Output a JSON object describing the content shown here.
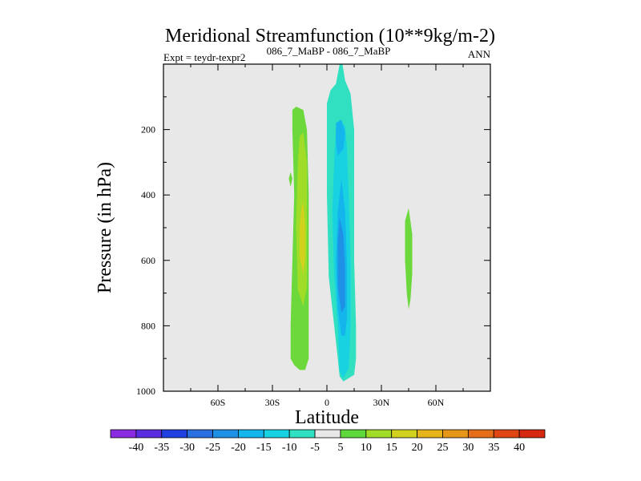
{
  "chart_data": {
    "type": "heatmap",
    "title": "Meridional Streamfunction (10**9kg/m-2)",
    "subtitle_left": "Expt = teydr-texpr2",
    "subtitle_center": "086_7_MaBP - 086_7_MaBP",
    "subtitle_right": "ANN",
    "xlabel": "Latitude",
    "ylabel": "Pressure (in hPa)",
    "xlim": [
      -90,
      90
    ],
    "ylim": [
      1000,
      0
    ],
    "x_ticks": [
      {
        "value": -60,
        "label": "60S"
      },
      {
        "value": -30,
        "label": "30S"
      },
      {
        "value": 0,
        "label": "0"
      },
      {
        "value": 30,
        "label": "30N"
      },
      {
        "value": 60,
        "label": "60N"
      }
    ],
    "y_ticks": [
      {
        "value": 200,
        "label": "200"
      },
      {
        "value": 400,
        "label": "400"
      },
      {
        "value": 600,
        "label": "600"
      },
      {
        "value": 800,
        "label": "800"
      },
      {
        "value": 1000,
        "label": "1000"
      }
    ],
    "background_color": "#e8e8e8",
    "colorbar": {
      "levels": [
        "-40",
        "-35",
        "-30",
        "-25",
        "-20",
        "-15",
        "-10",
        "-5",
        "5",
        "10",
        "15",
        "20",
        "25",
        "30",
        "35",
        "40"
      ],
      "colors": [
        "#8a2be2",
        "#5a2de0",
        "#2040e0",
        "#2a70e0",
        "#1e90e6",
        "#14b4ec",
        "#18d2e2",
        "#30e0c0",
        "#e8e8e8",
        "#5ed83a",
        "#a0dc28",
        "#d2d21e",
        "#e6b41a",
        "#e69618",
        "#e66e18",
        "#e04614",
        "#d62810"
      ]
    },
    "contours": [
      {
        "name": "sh-positive-cell",
        "level": 5,
        "color": "#6cd83c",
        "points": [
          [
            -17,
            130
          ],
          [
            -13,
            140
          ],
          [
            -11,
            200
          ],
          [
            -10,
            400
          ],
          [
            -10,
            600
          ],
          [
            -10,
            800
          ],
          [
            -10,
            900
          ],
          [
            -12,
            935
          ],
          [
            -15,
            935
          ],
          [
            -18,
            920
          ],
          [
            -20,
            900
          ],
          [
            -20,
            800
          ],
          [
            -19,
            600
          ],
          [
            -18,
            400
          ],
          [
            -19,
            200
          ],
          [
            -19,
            140
          ]
        ]
      },
      {
        "name": "sh-positive-core-10",
        "level": 10,
        "color": "#a0dc28",
        "points": [
          [
            -13,
            210
          ],
          [
            -11,
            300
          ],
          [
            -11,
            500
          ],
          [
            -11,
            680
          ],
          [
            -13,
            740
          ],
          [
            -16,
            690
          ],
          [
            -17,
            500
          ],
          [
            -16,
            300
          ],
          [
            -15,
            220
          ]
        ]
      },
      {
        "name": "sh-positive-core-15",
        "level": 15,
        "color": "#d2d21e",
        "points": [
          [
            -13,
            420
          ],
          [
            -12,
            500
          ],
          [
            -12,
            590
          ],
          [
            -13,
            640
          ],
          [
            -15,
            590
          ],
          [
            -15,
            500
          ],
          [
            -14,
            440
          ]
        ]
      },
      {
        "name": "sh-isolated-cell",
        "level": 5,
        "color": "#6cd83c",
        "points": [
          [
            -20,
            330
          ],
          [
            -19,
            350
          ],
          [
            -20,
            375
          ],
          [
            -21,
            350
          ]
        ]
      },
      {
        "name": "eq-negative-cell",
        "level": -5,
        "color": "#30e0c0",
        "points": [
          [
            8,
            -20
          ],
          [
            10,
            50
          ],
          [
            13,
            90
          ],
          [
            15,
            200
          ],
          [
            15,
            400
          ],
          [
            15,
            600
          ],
          [
            16,
            800
          ],
          [
            16,
            900
          ],
          [
            15,
            950
          ],
          [
            12,
            960
          ],
          [
            9,
            970
          ],
          [
            7,
            955
          ],
          [
            6,
            900
          ],
          [
            4,
            800
          ],
          [
            1,
            650
          ],
          [
            0,
            400
          ],
          [
            0,
            200
          ],
          [
            0,
            120
          ],
          [
            2,
            80
          ],
          [
            5,
            60
          ],
          [
            7,
            0
          ]
        ]
      },
      {
        "name": "eq-negative-core-10",
        "level": -10,
        "color": "#18d2e2",
        "points": [
          [
            5,
            200
          ],
          [
            7,
            170
          ],
          [
            10,
            190
          ],
          [
            11,
            250
          ],
          [
            12,
            400
          ],
          [
            13,
            600
          ],
          [
            13,
            800
          ],
          [
            12,
            930
          ],
          [
            9,
            960
          ],
          [
            7,
            940
          ],
          [
            6,
            800
          ],
          [
            4,
            650
          ],
          [
            3,
            450
          ],
          [
            4,
            300
          ]
        ]
      },
      {
        "name": "eq-negative-core-15",
        "level": -15,
        "color": "#14b4ec",
        "points": [
          [
            5,
            180
          ],
          [
            8,
            170
          ],
          [
            10,
            210
          ],
          [
            9,
            260
          ],
          [
            6,
            280
          ],
          [
            5,
            240
          ]
        ]
      },
      {
        "name": "eq-negative-core-15b",
        "level": -15,
        "color": "#14b4ec",
        "points": [
          [
            8,
            350
          ],
          [
            10,
            450
          ],
          [
            11,
            600
          ],
          [
            11,
            780
          ],
          [
            10,
            830
          ],
          [
            8,
            830
          ],
          [
            6,
            750
          ],
          [
            5,
            600
          ],
          [
            6,
            450
          ]
        ]
      },
      {
        "name": "eq-negative-core-20",
        "level": -20,
        "color": "#1e90e6",
        "points": [
          [
            7,
            470
          ],
          [
            9,
            520
          ],
          [
            10,
            620
          ],
          [
            10,
            740
          ],
          [
            8,
            760
          ],
          [
            6,
            680
          ],
          [
            6,
            540
          ]
        ]
      },
      {
        "name": "nh-positive-cell",
        "level": 5,
        "color": "#6cd83c",
        "points": [
          [
            45,
            440
          ],
          [
            47,
            520
          ],
          [
            47,
            640
          ],
          [
            46,
            720
          ],
          [
            45,
            750
          ],
          [
            44,
            700
          ],
          [
            43,
            600
          ],
          [
            43,
            480
          ]
        ]
      }
    ]
  }
}
